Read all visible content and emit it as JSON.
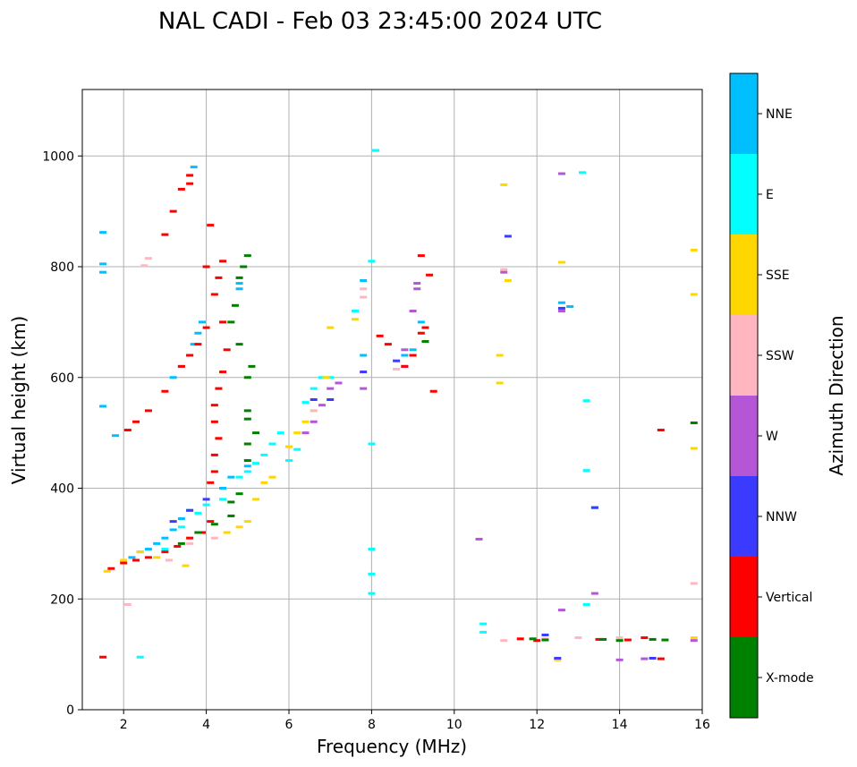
{
  "chart_data": {
    "type": "scatter",
    "title": "NAL CADI - Feb 03 23:45:00 2024 UTC",
    "xlabel": "Frequency (MHz)",
    "ylabel": "Virtual height (km)",
    "xlim": [
      1,
      16
    ],
    "ylim": [
      0,
      1120
    ],
    "xticks": [
      2,
      4,
      6,
      8,
      10,
      12,
      14,
      16
    ],
    "yticks": [
      0,
      200,
      400,
      600,
      800,
      1000
    ],
    "grid": true,
    "colorbar": {
      "label": "Azimuth Direction",
      "categories": [
        {
          "name": "X-mode",
          "color": "#008000"
        },
        {
          "name": "Vertical",
          "color": "#ff0000"
        },
        {
          "name": "NNW",
          "color": "#3b3bff"
        },
        {
          "name": "W",
          "color": "#b456d6"
        },
        {
          "name": "SSW",
          "color": "#ffb6c1"
        },
        {
          "name": "SSE",
          "color": "#ffd700"
        },
        {
          "name": "E",
          "color": "#00ffff"
        },
        {
          "name": "NNE",
          "color": "#00bfff"
        }
      ]
    },
    "series": [
      {
        "name": "NNE",
        "points": [
          [
            1.5,
            862
          ],
          [
            1.5,
            805
          ],
          [
            1.5,
            790
          ],
          [
            1.5,
            548
          ],
          [
            1.8,
            495
          ],
          [
            2.2,
            275
          ],
          [
            2.4,
            285
          ],
          [
            2.6,
            290
          ],
          [
            2.8,
            300
          ],
          [
            3.0,
            310
          ],
          [
            3.2,
            325
          ],
          [
            3.4,
            345
          ],
          [
            3.6,
            360
          ],
          [
            3.2,
            600
          ],
          [
            3.4,
            620
          ],
          [
            3.6,
            640
          ],
          [
            3.7,
            660
          ],
          [
            3.8,
            680
          ],
          [
            3.9,
            700
          ],
          [
            3.7,
            980
          ],
          [
            4.8,
            770
          ],
          [
            4.8,
            760
          ],
          [
            4.4,
            400
          ],
          [
            4.6,
            420
          ],
          [
            5.0,
            440
          ],
          [
            7.8,
            775
          ],
          [
            7.8,
            640
          ],
          [
            8.8,
            640
          ],
          [
            9.0,
            650
          ],
          [
            9.2,
            700
          ],
          [
            12.6,
            735
          ],
          [
            12.8,
            728
          ],
          [
            13.4,
            365
          ]
        ]
      },
      {
        "name": "E",
        "points": [
          [
            2.4,
            95
          ],
          [
            3.0,
            290
          ],
          [
            3.4,
            330
          ],
          [
            3.8,
            355
          ],
          [
            4.0,
            370
          ],
          [
            4.4,
            380
          ],
          [
            4.8,
            420
          ],
          [
            5.0,
            430
          ],
          [
            5.2,
            445
          ],
          [
            5.4,
            460
          ],
          [
            5.6,
            480
          ],
          [
            5.8,
            500
          ],
          [
            6.0,
            450
          ],
          [
            6.2,
            470
          ],
          [
            6.4,
            555
          ],
          [
            6.6,
            580
          ],
          [
            6.8,
            600
          ],
          [
            7.0,
            600
          ],
          [
            7.6,
            720
          ],
          [
            8.0,
            810
          ],
          [
            8.1,
            1010
          ],
          [
            8.0,
            480
          ],
          [
            8.0,
            290
          ],
          [
            8.0,
            245
          ],
          [
            8.0,
            210
          ],
          [
            10.7,
            155
          ],
          [
            10.7,
            140
          ],
          [
            13.1,
            970
          ],
          [
            13.2,
            558
          ],
          [
            13.2,
            432
          ],
          [
            13.2,
            190
          ]
        ]
      },
      {
        "name": "SSE",
        "points": [
          [
            1.6,
            250
          ],
          [
            2.0,
            270
          ],
          [
            2.4,
            285
          ],
          [
            2.8,
            275
          ],
          [
            3.5,
            260
          ],
          [
            4.5,
            320
          ],
          [
            4.8,
            330
          ],
          [
            5.0,
            340
          ],
          [
            5.2,
            380
          ],
          [
            5.4,
            410
          ],
          [
            5.6,
            420
          ],
          [
            6.0,
            475
          ],
          [
            6.2,
            500
          ],
          [
            6.4,
            520
          ],
          [
            6.6,
            540
          ],
          [
            6.9,
            600
          ],
          [
            7.0,
            690
          ],
          [
            7.6,
            705
          ],
          [
            11.2,
            948
          ],
          [
            11.3,
            775
          ],
          [
            11.1,
            640
          ],
          [
            11.1,
            590
          ],
          [
            12.6,
            808
          ],
          [
            12.5,
            90
          ],
          [
            15.8,
            830
          ],
          [
            15.8,
            750
          ],
          [
            15.8,
            472
          ],
          [
            15.8,
            130
          ]
        ]
      },
      {
        "name": "SSW",
        "points": [
          [
            2.1,
            190
          ],
          [
            2.5,
            802
          ],
          [
            2.6,
            815
          ],
          [
            3.1,
            270
          ],
          [
            3.6,
            300
          ],
          [
            4.2,
            310
          ],
          [
            6.6,
            540
          ],
          [
            7.8,
            760
          ],
          [
            7.8,
            745
          ],
          [
            8.6,
            615
          ],
          [
            11.2,
            795
          ],
          [
            11.2,
            125
          ],
          [
            12.2,
            128
          ],
          [
            13.0,
            130
          ],
          [
            14.0,
            130
          ],
          [
            15.8,
            228
          ]
        ]
      },
      {
        "name": "W",
        "points": [
          [
            6.4,
            500
          ],
          [
            6.6,
            520
          ],
          [
            6.8,
            550
          ],
          [
            7.0,
            580
          ],
          [
            7.2,
            590
          ],
          [
            7.8,
            580
          ],
          [
            8.8,
            650
          ],
          [
            9.0,
            720
          ],
          [
            9.1,
            760
          ],
          [
            9.1,
            770
          ],
          [
            11.2,
            790
          ],
          [
            12.6,
            968
          ],
          [
            12.6,
            720
          ],
          [
            12.6,
            180
          ],
          [
            13.4,
            210
          ],
          [
            14.0,
            90
          ],
          [
            14.6,
            92
          ],
          [
            15.8,
            125
          ],
          [
            10.6,
            308
          ]
        ]
      },
      {
        "name": "NNW",
        "points": [
          [
            3.2,
            340
          ],
          [
            3.6,
            360
          ],
          [
            4.0,
            380
          ],
          [
            6.6,
            560
          ],
          [
            7.0,
            560
          ],
          [
            7.8,
            610
          ],
          [
            8.6,
            630
          ],
          [
            8.8,
            620
          ],
          [
            9.0,
            640
          ],
          [
            11.3,
            855
          ],
          [
            12.2,
            135
          ],
          [
            12.6,
            725
          ],
          [
            13.4,
            365
          ],
          [
            12.5,
            93
          ],
          [
            14.8,
            93
          ]
        ]
      },
      {
        "name": "Vertical",
        "points": [
          [
            1.5,
            95
          ],
          [
            1.7,
            255
          ],
          [
            2.0,
            265
          ],
          [
            2.3,
            270
          ],
          [
            2.6,
            275
          ],
          [
            3.0,
            285
          ],
          [
            3.3,
            295
          ],
          [
            3.6,
            310
          ],
          [
            3.9,
            320
          ],
          [
            4.1,
            340
          ],
          [
            4.1,
            410
          ],
          [
            4.2,
            430
          ],
          [
            4.2,
            460
          ],
          [
            4.3,
            490
          ],
          [
            4.2,
            520
          ],
          [
            4.2,
            550
          ],
          [
            4.3,
            580
          ],
          [
            4.4,
            610
          ],
          [
            4.5,
            650
          ],
          [
            4.4,
            700
          ],
          [
            4.2,
            750
          ],
          [
            4.3,
            780
          ],
          [
            4.0,
            800
          ],
          [
            4.4,
            810
          ],
          [
            2.1,
            505
          ],
          [
            2.3,
            520
          ],
          [
            2.6,
            540
          ],
          [
            3.0,
            575
          ],
          [
            3.4,
            620
          ],
          [
            3.6,
            640
          ],
          [
            3.8,
            660
          ],
          [
            4.0,
            690
          ],
          [
            3.0,
            858
          ],
          [
            3.2,
            900
          ],
          [
            3.4,
            940
          ],
          [
            3.6,
            965
          ],
          [
            3.6,
            950
          ],
          [
            4.1,
            875
          ],
          [
            8.2,
            675
          ],
          [
            8.4,
            660
          ],
          [
            8.8,
            620
          ],
          [
            9.0,
            640
          ],
          [
            9.3,
            690
          ],
          [
            9.2,
            680
          ],
          [
            9.5,
            575
          ],
          [
            9.4,
            785
          ],
          [
            9.2,
            820
          ],
          [
            11.6,
            128
          ],
          [
            12.0,
            125
          ],
          [
            13.5,
            127
          ],
          [
            14.2,
            126
          ],
          [
            14.6,
            130
          ],
          [
            15.0,
            505
          ],
          [
            15.0,
            92
          ]
        ]
      },
      {
        "name": "X-mode",
        "points": [
          [
            3.4,
            300
          ],
          [
            3.8,
            320
          ],
          [
            4.2,
            335
          ],
          [
            4.6,
            350
          ],
          [
            4.6,
            375
          ],
          [
            4.8,
            390
          ],
          [
            5.0,
            450
          ],
          [
            5.0,
            525
          ],
          [
            5.0,
            540
          ],
          [
            5.0,
            600
          ],
          [
            5.1,
            620
          ],
          [
            4.8,
            660
          ],
          [
            4.6,
            700
          ],
          [
            4.7,
            730
          ],
          [
            4.8,
            780
          ],
          [
            4.9,
            800
          ],
          [
            5.0,
            820
          ],
          [
            5.0,
            480
          ],
          [
            5.2,
            500
          ],
          [
            9.3,
            665
          ],
          [
            11.9,
            128
          ],
          [
            12.2,
            126
          ],
          [
            13.6,
            127
          ],
          [
            14.0,
            125
          ],
          [
            14.8,
            127
          ],
          [
            15.1,
            126
          ],
          [
            15.8,
            518
          ]
        ]
      }
    ]
  }
}
